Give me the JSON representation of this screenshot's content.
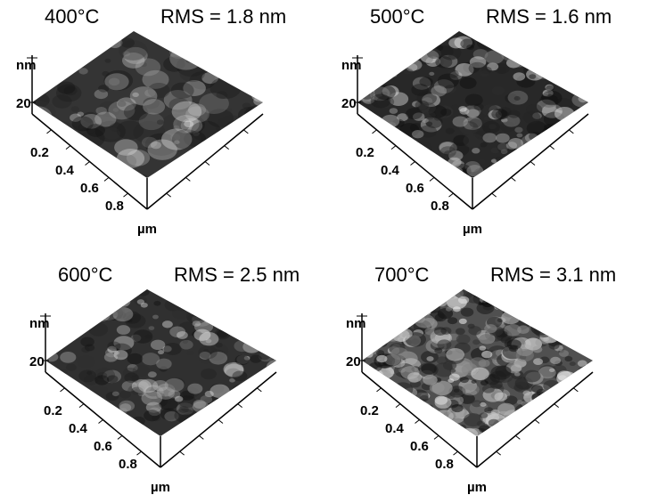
{
  "panels": [
    {
      "temperature": "400°C",
      "rms": "RMS = 1.8 nm",
      "z_unit": "nm",
      "z_tick": "20",
      "xy_ticks": [
        "0.2",
        "0.4",
        "0.6",
        "0.8"
      ],
      "xy_unit": "µm"
    },
    {
      "temperature": "500°C",
      "rms": "RMS = 1.6 nm",
      "z_unit": "nm",
      "z_tick": "20",
      "xy_ticks": [
        "0.2",
        "0.4",
        "0.6",
        "0.8"
      ],
      "xy_unit": "µm"
    },
    {
      "temperature": "600°C",
      "rms": "RMS = 2.5 nm",
      "z_unit": "nm",
      "z_tick": "20",
      "xy_ticks": [
        "0.2",
        "0.4",
        "0.6",
        "0.8"
      ],
      "xy_unit": "µm"
    },
    {
      "temperature": "700°C",
      "rms": "RMS = 3.1 nm",
      "z_unit": "nm",
      "z_tick": "20",
      "xy_ticks": [
        "0.2",
        "0.4",
        "0.6",
        "0.8"
      ],
      "xy_unit": "µm"
    }
  ]
}
